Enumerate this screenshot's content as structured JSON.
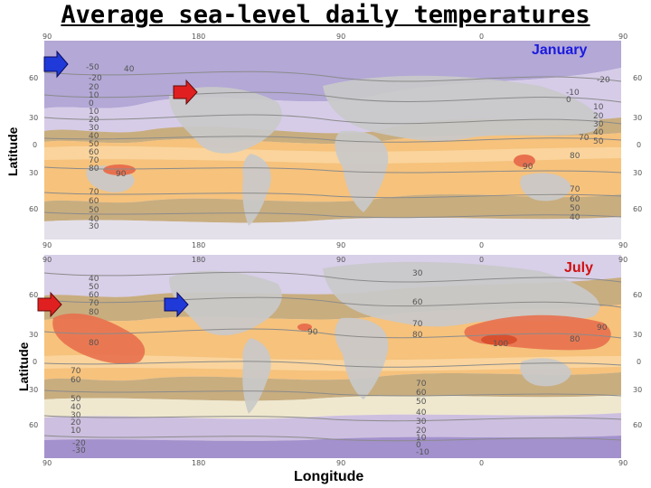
{
  "title": "Average sea-level daily temperatures",
  "x_axis_label": "Longitude",
  "y_axis_label": "Latitude",
  "colors": {
    "january_label": "#1a1adf",
    "july_label": "#d01010",
    "arrow_blue": "#1f3ad8",
    "arrow_red": "#e02020",
    "land": "#c9c9c9",
    "warm_band": "#f6c27c",
    "hot": "#e8704e",
    "mid_band": "#c8ad7f",
    "cool": "#cfc3e2",
    "cold": "#a79ad2"
  },
  "maps": [
    {
      "month": "January",
      "longitude_top": [
        "90",
        "180",
        "90",
        "0",
        "90"
      ],
      "longitude_bottom": [
        "90",
        "180",
        "90",
        "0",
        "90"
      ],
      "latitude_left": [
        "60",
        "30",
        "0",
        "30",
        "60"
      ],
      "latitude_right": [
        "60",
        "30",
        "0",
        "30",
        "60"
      ],
      "markers": [
        {
          "name": "blue-arrow",
          "icon": "right-arrow-icon",
          "color": "blue"
        },
        {
          "name": "red-arrow",
          "icon": "right-arrow-icon",
          "color": "red"
        }
      ],
      "isotherm_labels": [
        "-50",
        "40",
        "-20",
        "20",
        "10",
        "0",
        "10",
        "20",
        "30",
        "40",
        "50",
        "60",
        "70",
        "80",
        "90",
        "70",
        "60",
        "50",
        "40",
        "30",
        "90",
        "80",
        "70",
        "60",
        "50",
        "40",
        "-20",
        "-10",
        "0",
        "10",
        "20",
        "30",
        "40",
        "50",
        "70"
      ]
    },
    {
      "month": "July",
      "longitude_top": [
        "90",
        "180",
        "90",
        "0",
        "90"
      ],
      "longitude_bottom": [
        "90",
        "180",
        "90",
        "0",
        "90"
      ],
      "latitude_left": [
        "60",
        "30",
        "0",
        "30",
        "60"
      ],
      "latitude_right": [
        "60",
        "30",
        "0",
        "30",
        "60"
      ],
      "markers": [
        {
          "name": "red-arrow",
          "icon": "right-arrow-icon",
          "color": "red"
        },
        {
          "name": "blue-arrow",
          "icon": "right-arrow-icon",
          "color": "blue"
        }
      ],
      "isotherm_labels": [
        "40",
        "50",
        "60",
        "70",
        "80",
        "80",
        "70",
        "60",
        "50",
        "40",
        "30",
        "20",
        "10",
        "30",
        "60",
        "70",
        "80",
        "90",
        "100",
        "80",
        "90",
        "70",
        "60",
        "50",
        "40",
        "30",
        "20",
        "10",
        "0",
        "-10",
        "-20",
        "-30"
      ]
    }
  ]
}
